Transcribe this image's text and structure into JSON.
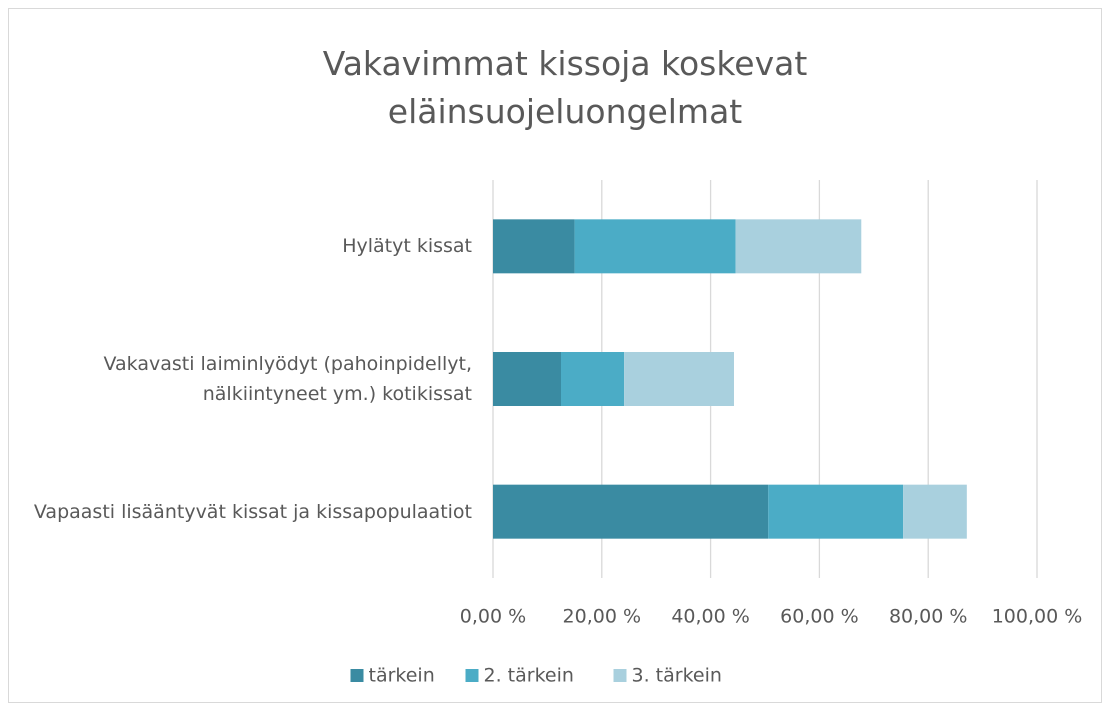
{
  "chart_data": {
    "type": "stacked_bar_horizontal",
    "title": "Vakavimmat kissoja koskevat eläinsuojeluongelmat",
    "categories": [
      "Hylätyt kissat",
      "Vakavasti laiminlyödyt (pahoinpidellyt, nälkiintyneet ym.) kotikissat",
      "Vapaasti lisääntyvät kissat ja kissapopulaatiot"
    ],
    "series": [
      {
        "name": "tärkein",
        "color": "#3a8ba2",
        "values": [
          15,
          12.5,
          50.6
        ]
      },
      {
        "name": "2. tärkein",
        "color": "#4bacc6",
        "values": [
          29.6,
          11.6,
          24.8
        ]
      },
      {
        "name": "3. tärkein",
        "color": "#a9d0de",
        "values": [
          23.1,
          20.2,
          11.7
        ]
      }
    ],
    "xlim": [
      0,
      100
    ],
    "xticks": [
      {
        "value": 0,
        "label": "0,00 %"
      },
      {
        "value": 20,
        "label": "20,00 %"
      },
      {
        "value": 40,
        "label": "40,00 %"
      },
      {
        "value": 60,
        "label": "60,00 %"
      },
      {
        "value": 80,
        "label": "80,00 %"
      },
      {
        "value": 100,
        "label": "100,00 %"
      }
    ],
    "grid": true,
    "legend": "bottom"
  }
}
